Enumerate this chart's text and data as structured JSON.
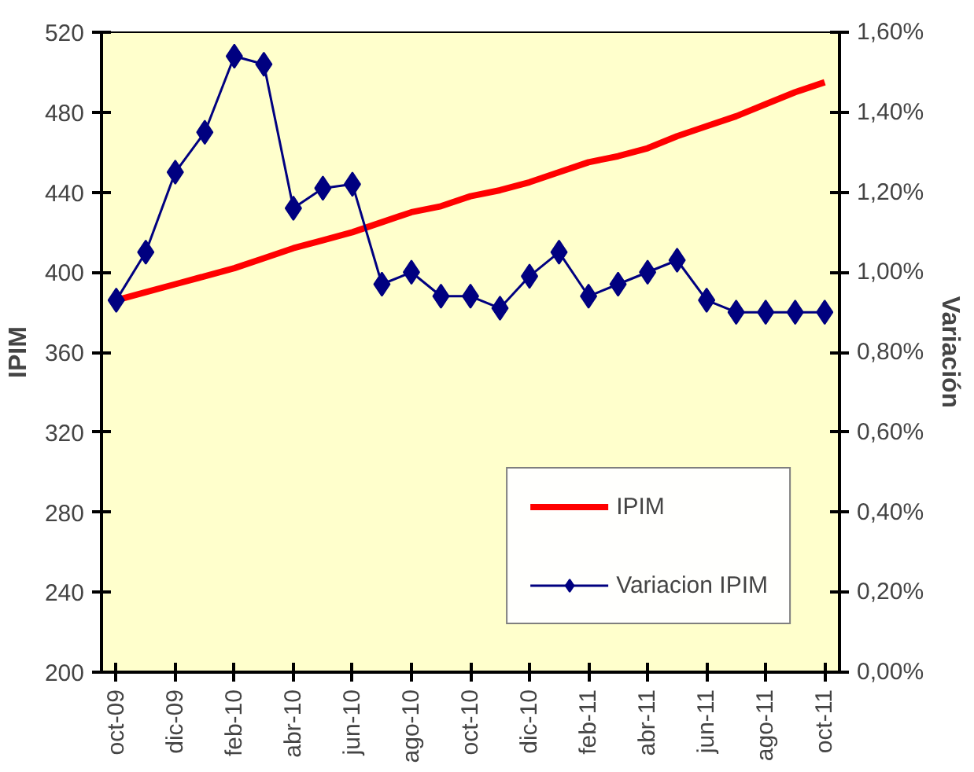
{
  "chart_data": {
    "type": "line",
    "categories": [
      "oct-09",
      null,
      "dic-09",
      null,
      "feb-10",
      null,
      "abr-10",
      null,
      "jun-10",
      null,
      "ago-10",
      null,
      "oct-10",
      null,
      "dic-10",
      null,
      "feb-11",
      null,
      "abr-11",
      null,
      "jun-11",
      null,
      "ago-11",
      null,
      "oct-11"
    ],
    "ylabel": "IPIM",
    "y2label": "Variación",
    "ylim": [
      200,
      520
    ],
    "yticks": [
      200,
      240,
      280,
      320,
      360,
      400,
      440,
      480,
      520
    ],
    "y2lim": [
      0,
      1.6
    ],
    "y2ticks": [
      {
        "value": 0,
        "label": "0,00%"
      },
      {
        "value": 0.2,
        "label": "0,20%"
      },
      {
        "value": 0.4,
        "label": "0,40%"
      },
      {
        "value": 0.6,
        "label": "0,60%"
      },
      {
        "value": 0.8,
        "label": "0,80%"
      },
      {
        "value": 1.0,
        "label": "1,00%"
      },
      {
        "value": 1.2,
        "label": "1,20%"
      },
      {
        "value": 1.4,
        "label": "1,40%"
      },
      {
        "value": 1.6,
        "label": "1,60%"
      }
    ],
    "series": [
      {
        "name": "IPIM",
        "color": "#ff0000",
        "marker": "none",
        "values": [
          386,
          390,
          394,
          398,
          402,
          407,
          412,
          416,
          420,
          425,
          430,
          433,
          438,
          441,
          445,
          450,
          455,
          458,
          462,
          468,
          473,
          478,
          484,
          490,
          495
        ]
      },
      {
        "name": "Variacion IPIM",
        "color": "#000080",
        "marker": "diamond",
        "axis": "y2",
        "values": [
          0.93,
          1.05,
          1.25,
          1.35,
          1.54,
          1.52,
          1.16,
          1.21,
          1.22,
          0.97,
          1.0,
          0.94,
          0.94,
          0.91,
          0.99,
          1.05,
          0.94,
          0.97,
          1.0,
          1.03,
          0.93,
          0.9,
          0.9,
          0.9,
          0.9
        ]
      }
    ],
    "grid": false,
    "legend": "bottom right"
  }
}
